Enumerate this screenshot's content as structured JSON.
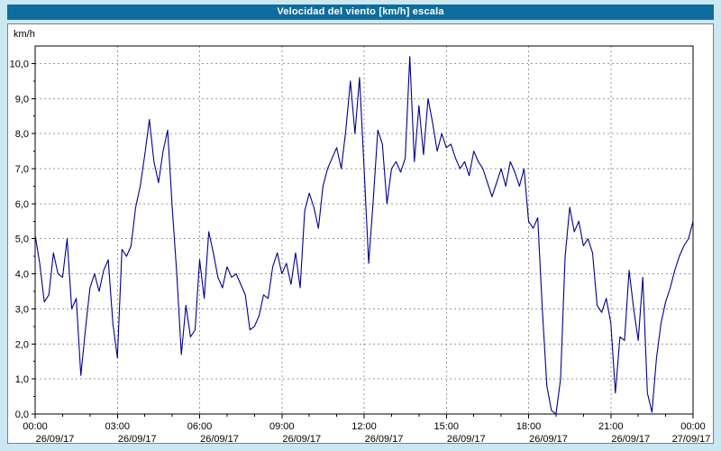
{
  "window": {
    "title": "Velocidad del viento [km/h] escala",
    "title_bg": "#0e6d9c",
    "title_color": "#ffffff",
    "frame_bg": "#cbe7f2"
  },
  "chart_data": {
    "type": "line",
    "title": "Velocidad del viento [km/h] escala",
    "ylabel": "km/h",
    "xlabel": "",
    "ylim": [
      0,
      10.5
    ],
    "xlim": [
      0,
      24
    ],
    "grid": true,
    "line_color": "#00008b",
    "grid_color": "#9a9a9a",
    "y_ticks": [
      0,
      1,
      2,
      3,
      4,
      5,
      6,
      7,
      8,
      9,
      10
    ],
    "y_tick_labels": [
      "0,0",
      "1,0",
      "2,0",
      "3,0",
      "4,0",
      "5,0",
      "6,0",
      "7,0",
      "8,0",
      "9,0",
      "10,0"
    ],
    "x_minor_step_hours": 1,
    "x_major_ticks": [
      {
        "hour": 0,
        "time": "00:00",
        "date": "26/09/17"
      },
      {
        "hour": 3,
        "time": "03:00",
        "date": "26/09/17"
      },
      {
        "hour": 6,
        "time": "06:00",
        "date": "26/09/17"
      },
      {
        "hour": 9,
        "time": "09:00",
        "date": "26/09/17"
      },
      {
        "hour": 12,
        "time": "12:00",
        "date": "26/09/17"
      },
      {
        "hour": 15,
        "time": "15:00",
        "date": "26/09/17"
      },
      {
        "hour": 18,
        "time": "18:00",
        "date": "26/09/17"
      },
      {
        "hour": 21,
        "time": "21:00",
        "date": "26/09/17"
      },
      {
        "hour": 24,
        "time": "00:00",
        "date": "27/09/17"
      }
    ],
    "sample_step_hours": 0.166667,
    "values": [
      5.1,
      4.3,
      3.2,
      3.4,
      4.6,
      4.0,
      3.9,
      5.0,
      3.0,
      3.3,
      1.1,
      2.4,
      3.6,
      4.0,
      3.5,
      4.1,
      4.4,
      2.6,
      1.6,
      4.7,
      4.5,
      4.8,
      5.9,
      6.5,
      7.4,
      8.4,
      7.2,
      6.6,
      7.5,
      8.1,
      5.9,
      4.0,
      1.7,
      3.1,
      2.2,
      2.4,
      4.4,
      3.3,
      5.2,
      4.6,
      3.9,
      3.6,
      4.2,
      3.9,
      4.0,
      3.7,
      3.4,
      2.4,
      2.5,
      2.8,
      3.4,
      3.3,
      4.2,
      4.6,
      4.0,
      4.3,
      3.7,
      4.6,
      3.6,
      5.8,
      6.3,
      5.9,
      5.3,
      6.5,
      7.0,
      7.3,
      7.6,
      7.0,
      8.1,
      9.5,
      8.0,
      9.6,
      7.0,
      4.3,
      6.1,
      8.1,
      7.7,
      6.0,
      7.0,
      7.2,
      6.9,
      7.3,
      10.2,
      7.2,
      8.8,
      7.4,
      9.0,
      8.3,
      7.5,
      8.0,
      7.6,
      7.7,
      7.3,
      7.0,
      7.2,
      6.8,
      7.5,
      7.2,
      7.0,
      6.6,
      6.2,
      6.6,
      7.0,
      6.5,
      7.2,
      6.9,
      6.5,
      7.0,
      5.5,
      5.3,
      5.6,
      3.0,
      0.8,
      0.1,
      0.0,
      1.0,
      4.5,
      5.9,
      5.2,
      5.5,
      4.8,
      5.0,
      4.6,
      3.1,
      2.9,
      3.3,
      2.6,
      0.6,
      2.2,
      2.1,
      4.1,
      3.0,
      2.1,
      3.9,
      0.6,
      0.05,
      1.6,
      2.6,
      3.2,
      3.6,
      4.1,
      4.5,
      4.8,
      5.0,
      5.5
    ]
  }
}
